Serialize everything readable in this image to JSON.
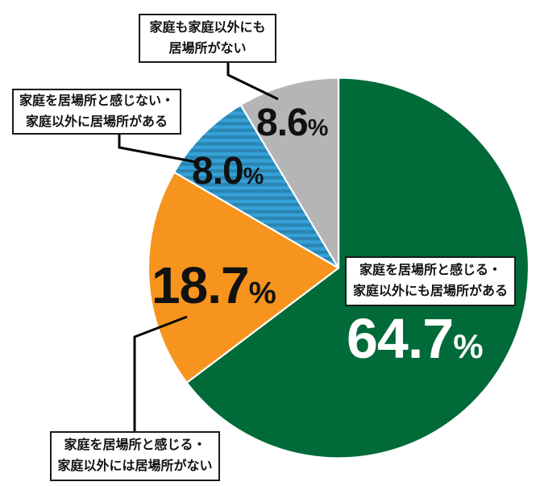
{
  "chart_data": {
    "type": "pie",
    "direction": "clockwise",
    "start_angle": "12-o'clock",
    "total": 100.0,
    "slices": [
      {
        "id": "green",
        "label": "家庭を居場所と感じる・家庭以外にも居場所がある",
        "label_line1": "家庭を居場所と感じる・",
        "label_line2": "家庭以外にも居場所がある",
        "value": 64.7,
        "display_value": "64.7",
        "unit": "%",
        "color": "#006A38",
        "pattern": "solid",
        "value_label_color": "#FFFFFF"
      },
      {
        "id": "orange",
        "label": "家庭を居場所と感じる・家庭以外には居場所がない",
        "label_line1": "家庭を居場所と感じる・",
        "label_line2": "家庭以外には居場所がない",
        "value": 18.7,
        "display_value": "18.7",
        "unit": "%",
        "color": "#F6941E",
        "pattern": "solid",
        "value_label_color": "#111111"
      },
      {
        "id": "blue",
        "label": "家庭を居場所と感じない・家庭以外に居場所がある",
        "label_line1": "家庭を居場所と感じない・",
        "label_line2": "家庭以外に居場所がある",
        "value": 8.0,
        "display_value": "8.0",
        "unit": "%",
        "color": "#36A1D9",
        "pattern": "horizontal-stripes",
        "stripe_color": "#2A85B1",
        "value_label_color": "#111111"
      },
      {
        "id": "gray",
        "label": "家庭も家庭以外にも居場所がない",
        "label_line1": "家庭も家庭以外にも",
        "label_line2": "居場所がない",
        "value": 8.6,
        "display_value": "8.6",
        "unit": "%",
        "color": "#B5B5B5",
        "pattern": "solid",
        "value_label_color": "#111111"
      }
    ],
    "separator_color": "#FFFFFF",
    "leader_line_color": "#000000"
  }
}
